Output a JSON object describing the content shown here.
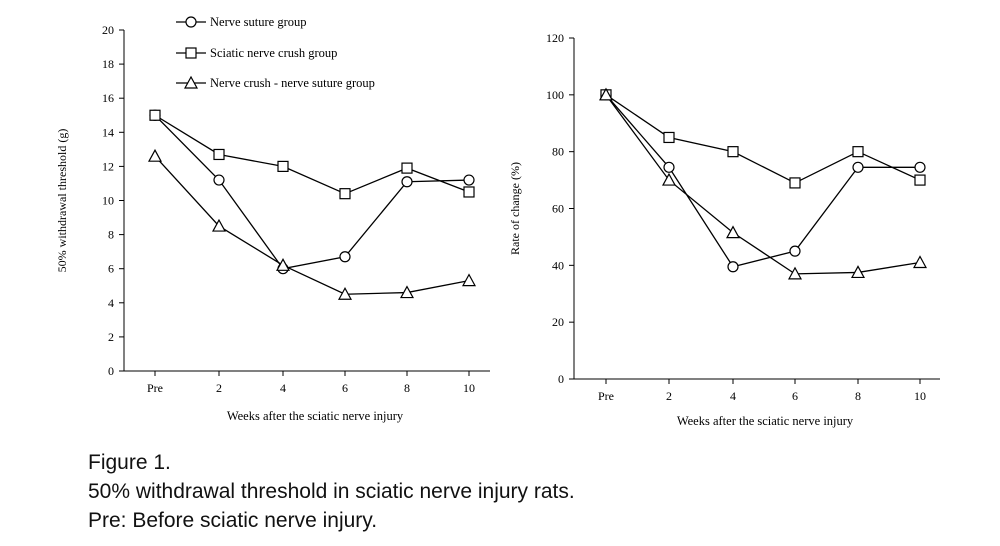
{
  "colors": {
    "ink": "#000000",
    "marker_fill": "#ffffff"
  },
  "legend": [
    {
      "label": "Nerve suture group",
      "marker": "circle"
    },
    {
      "label": "Sciatic nerve crush group",
      "marker": "square"
    },
    {
      "label": "Nerve crush - nerve suture group",
      "marker": "triangle"
    }
  ],
  "chart_data": [
    {
      "type": "line",
      "categories": [
        "Pre",
        "2",
        "4",
        "6",
        "8",
        "10"
      ],
      "xlabel": "Weeks after the sciatic nerve injury",
      "ylabel": "50% withdrawal threshold (g)",
      "ylim": [
        0,
        20
      ],
      "yticks": [
        "0",
        "2",
        "4",
        "6",
        "8",
        "10",
        "12",
        "14",
        "16",
        "18",
        "20"
      ],
      "grid": false,
      "legend_position": "top",
      "series": [
        {
          "name": "Nerve suture group",
          "marker": "circle",
          "values": [
            15.0,
            11.2,
            6.0,
            6.7,
            11.1,
            11.2
          ]
        },
        {
          "name": "Sciatic nerve crush group",
          "marker": "square",
          "values": [
            15.0,
            12.7,
            12.0,
            10.4,
            11.9,
            10.5
          ]
        },
        {
          "name": "Nerve crush - nerve suture group",
          "marker": "triangle",
          "values": [
            12.6,
            8.5,
            6.2,
            4.5,
            4.6,
            5.3
          ]
        }
      ]
    },
    {
      "type": "line",
      "categories": [
        "Pre",
        "2",
        "4",
        "6",
        "8",
        "10"
      ],
      "xlabel": "Weeks after the sciatic nerve injury",
      "ylabel": "Rate of change (%)",
      "ylim": [
        0,
        120
      ],
      "yticks": [
        "0",
        "20",
        "40",
        "60",
        "80",
        "100",
        "120"
      ],
      "grid": false,
      "series": [
        {
          "name": "Nerve suture group",
          "marker": "circle",
          "values": [
            100,
            74.5,
            39.5,
            45,
            74.5,
            74.5
          ]
        },
        {
          "name": "Sciatic nerve crush group",
          "marker": "square",
          "values": [
            100,
            85,
            80,
            69,
            80,
            70
          ]
        },
        {
          "name": "Nerve crush - nerve suture group",
          "marker": "triangle",
          "values": [
            100,
            70,
            51.5,
            37,
            37.5,
            41
          ]
        }
      ]
    }
  ],
  "caption": {
    "title": "Figure 1.",
    "line1": "50% withdrawal threshold in sciatic nerve injury rats.",
    "line2": "Pre: Before sciatic nerve injury."
  }
}
